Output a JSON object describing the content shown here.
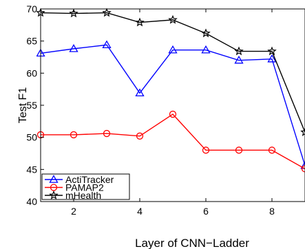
{
  "chart_data": {
    "type": "line",
    "title": "",
    "xlabel": "Layer of CNN−Ladder",
    "ylabel": "Test F1",
    "xlim": [
      1,
      9
    ],
    "ylim": [
      40,
      70
    ],
    "xticks": [
      2,
      4,
      6,
      8
    ],
    "yticks": [
      40,
      45,
      50,
      55,
      60,
      65,
      70
    ],
    "grid": false,
    "legend_position": "bottom-left",
    "x": [
      1,
      2,
      3,
      4,
      5,
      6,
      7,
      8,
      9
    ],
    "series": [
      {
        "name": "ActiTracker",
        "color": "#0000ff",
        "marker": "triangle",
        "values": [
          63.1,
          63.8,
          64.4,
          56.9,
          63.6,
          63.6,
          62.0,
          62.2,
          45.6
        ]
      },
      {
        "name": "PAMAP2",
        "color": "#ff0000",
        "marker": "circle",
        "values": [
          50.4,
          50.4,
          50.6,
          50.2,
          53.6,
          48.0,
          48.0,
          48.0,
          45.1
        ]
      },
      {
        "name": "mHealth",
        "color": "#000000",
        "marker": "star",
        "values": [
          69.4,
          69.3,
          69.4,
          67.9,
          68.3,
          66.2,
          63.4,
          63.4,
          50.8
        ]
      }
    ]
  }
}
